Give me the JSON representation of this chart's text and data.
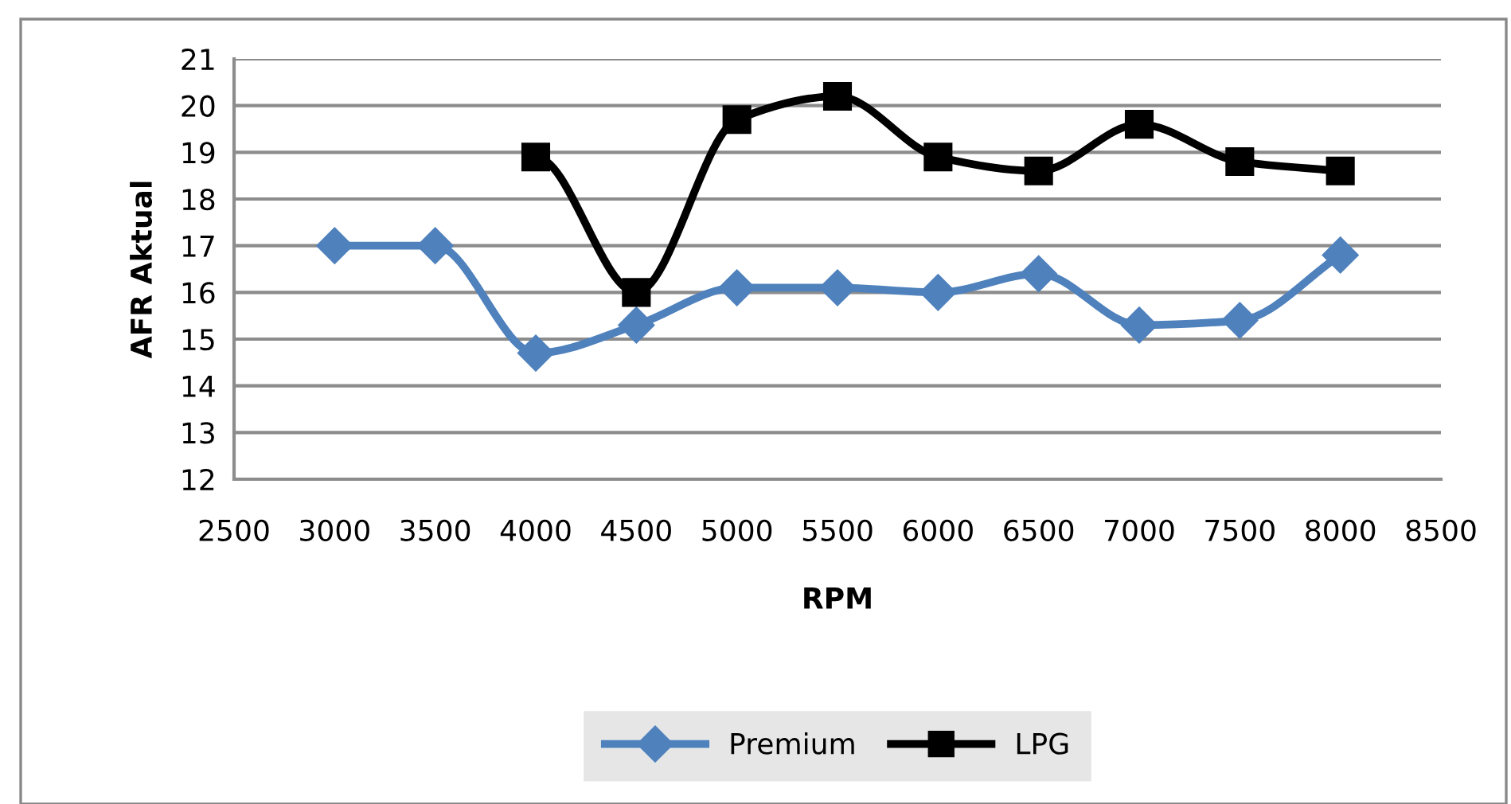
{
  "chart_data": {
    "type": "line",
    "xlabel": "RPM",
    "ylabel": "AFR Aktual",
    "xlim": [
      2500,
      8500
    ],
    "xticks": [
      2500,
      3000,
      3500,
      4000,
      4500,
      5000,
      5500,
      6000,
      6500,
      7000,
      7500,
      8000,
      8500
    ],
    "ylim": [
      12,
      21
    ],
    "yticks": [
      12,
      13,
      14,
      15,
      16,
      17,
      18,
      19,
      20,
      21
    ],
    "grid": "y",
    "legend": "bottom",
    "line_style": "solid",
    "series": [
      {
        "name": "Premium",
        "color": "#4f81bd",
        "marker": "diamond",
        "x": [
          3000,
          3500,
          4000,
          4500,
          5000,
          5500,
          6000,
          6500,
          7000,
          7500,
          8000
        ],
        "values": [
          17.0,
          17.0,
          14.7,
          15.3,
          16.1,
          16.1,
          16.0,
          16.4,
          15.3,
          15.4,
          16.8
        ]
      },
      {
        "name": "LPG",
        "color": "#000000",
        "marker": "square",
        "x": [
          4000,
          4500,
          5000,
          5500,
          6000,
          6500,
          7000,
          7500,
          8000
        ],
        "values": [
          18.9,
          16.0,
          19.7,
          20.2,
          18.9,
          18.6,
          19.6,
          18.8,
          18.6
        ]
      }
    ]
  }
}
